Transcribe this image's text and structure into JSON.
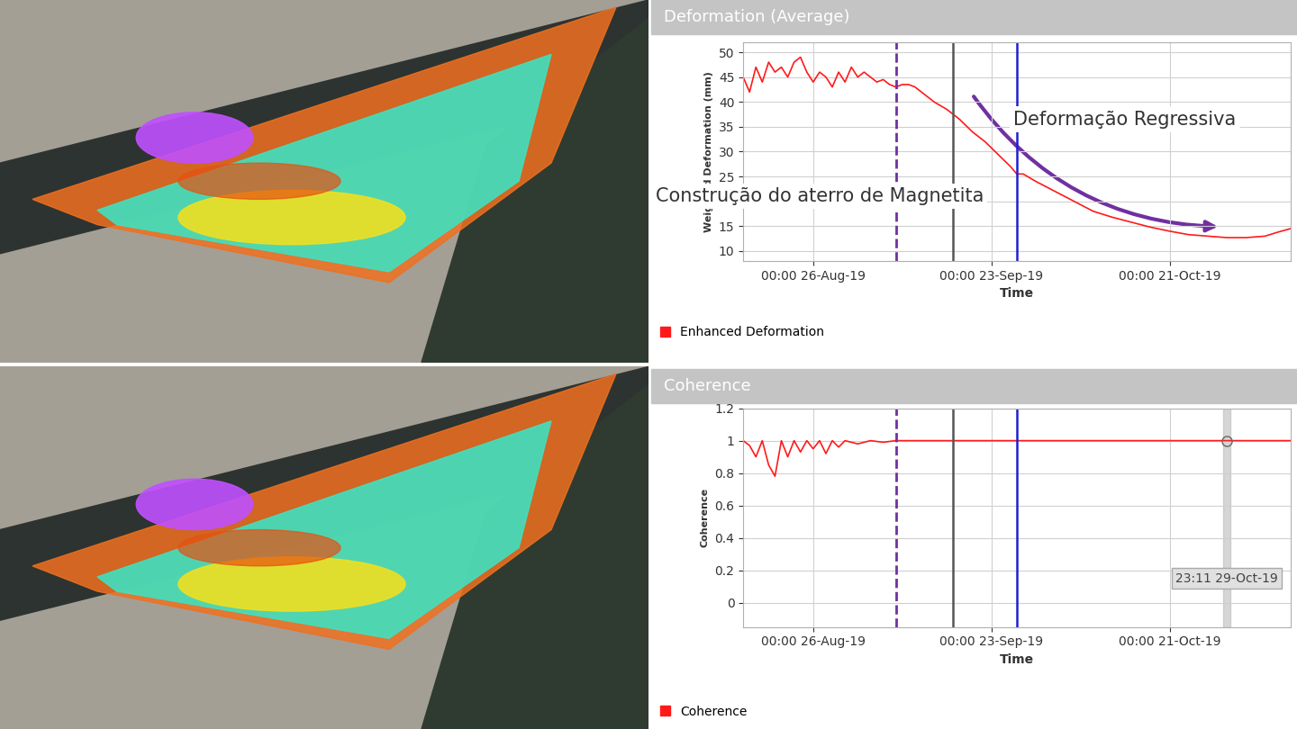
{
  "chart_data": [
    {
      "type": "line",
      "title": "Deformation (Average)",
      "x_label": "Time",
      "y_label": "Weighted Deformation (mm)",
      "series": [
        {
          "name": "Enhanced Deformation",
          "color": "#ff1a1a",
          "x": [
            "2019-08-15",
            "2019-08-16",
            "2019-08-17",
            "2019-08-18",
            "2019-08-19",
            "2019-08-20",
            "2019-08-21",
            "2019-08-22",
            "2019-08-23",
            "2019-08-24",
            "2019-08-25",
            "2019-08-26",
            "2019-08-27",
            "2019-08-28",
            "2019-08-29",
            "2019-08-30",
            "2019-08-31",
            "2019-09-01",
            "2019-09-02",
            "2019-09-03",
            "2019-09-04",
            "2019-09-05",
            "2019-09-06",
            "2019-09-07",
            "2019-09-08",
            "2019-09-09",
            "2019-09-10",
            "2019-09-11",
            "2019-09-12",
            "2019-09-14",
            "2019-09-16",
            "2019-09-18",
            "2019-09-20",
            "2019-09-22",
            "2019-09-24",
            "2019-09-26",
            "2019-09-27",
            "2019-09-28",
            "2019-09-30",
            "2019-10-03",
            "2019-10-06",
            "2019-10-09",
            "2019-10-12",
            "2019-10-15",
            "2019-10-18",
            "2019-10-21",
            "2019-10-24",
            "2019-10-27",
            "2019-10-30",
            "2019-11-02",
            "2019-11-05",
            "2019-11-07",
            "2019-11-09"
          ],
          "values": [
            45,
            42,
            47,
            44,
            48,
            46,
            47,
            45,
            48,
            49,
            46,
            44,
            46,
            45,
            43,
            46,
            44,
            47,
            45,
            46,
            45,
            44,
            44.5,
            43.5,
            43,
            43.5,
            43.5,
            43,
            42,
            40,
            38.5,
            36.5,
            34,
            32,
            29.5,
            27,
            25.5,
            25.5,
            24,
            22,
            20,
            18,
            16.8,
            15.8,
            14.8,
            14,
            13.3,
            13,
            12.7,
            12.7,
            13,
            13.8,
            14.5
          ]
        }
      ],
      "xlim": [
        "2019-08-15",
        "2019-11-09"
      ],
      "xticks": [
        {
          "value": "2019-08-26",
          "label": "00:00 26-Aug-19"
        },
        {
          "value": "2019-09-23",
          "label": "00:00 23-Sep-19"
        },
        {
          "value": "2019-10-21",
          "label": "00:00 21-Oct-19"
        }
      ],
      "ylim": [
        8,
        52
      ],
      "yticks": [
        10,
        15,
        20,
        25,
        30,
        35,
        40,
        45,
        50
      ],
      "grid": true,
      "legend": "lower left",
      "annotations": [
        {
          "text": "Construção do aterro de Magnetita",
          "x": "2019-08-27",
          "y": 21
        },
        {
          "text": "Deformação Regressiva",
          "x": "2019-10-14",
          "y": 36.5,
          "color": "#7030a0",
          "arrow": {
            "x": [
              "2019-09-20",
              "2019-10-29"
            ],
            "y": [
              41.5,
              14.9
            ]
          }
        }
      ]
    },
    {
      "type": "line",
      "title": "Coherence",
      "x_label": "Time",
      "y_label": "Coherence",
      "series": [
        {
          "name": "Coherence",
          "color": "#ff1a1a",
          "x": [
            "2019-08-15",
            "2019-08-16",
            "2019-08-17",
            "2019-08-18",
            "2019-08-19",
            "2019-08-20",
            "2019-08-21",
            "2019-08-22",
            "2019-08-23",
            "2019-08-24",
            "2019-08-25",
            "2019-08-26",
            "2019-08-27",
            "2019-08-28",
            "2019-08-29",
            "2019-08-30",
            "2019-08-31",
            "2019-09-02",
            "2019-09-04",
            "2019-09-06",
            "2019-09-08",
            "2019-09-15",
            "2019-10-01",
            "2019-10-15",
            "2019-11-01",
            "2019-11-09"
          ],
          "values": [
            1,
            0.97,
            0.9,
            1,
            0.85,
            0.78,
            1,
            0.9,
            1,
            0.93,
            1,
            0.95,
            1,
            0.92,
            1,
            0.96,
            1,
            0.98,
            1,
            0.99,
            1,
            1,
            1,
            1,
            1,
            1
          ]
        }
      ],
      "xlim": [
        "2019-08-15",
        "2019-11-09"
      ],
      "xticks": [
        {
          "value": "2019-08-26",
          "label": "00:00 26-Aug-19"
        },
        {
          "value": "2019-09-23",
          "label": "00:00 23-Sep-19"
        },
        {
          "value": "2019-10-21",
          "label": "00:00 21-Oct-19"
        }
      ],
      "ylim": [
        -0.15,
        1.2
      ],
      "yticks": [
        0,
        0.2,
        0.4,
        0.6,
        0.8,
        1,
        1.2
      ],
      "grid": true,
      "legend": "lower left",
      "cursor": {
        "x": "2019-10-29 23:11",
        "y": 1,
        "label": "23:11 29-Oct-19"
      }
    }
  ],
  "vlines": [
    {
      "x": "2019-09-08",
      "color": "#7030a0",
      "line_style": "dashed"
    },
    {
      "x": "2019-09-17",
      "color": "#555555",
      "line_style": "solid"
    },
    {
      "x": "2019-09-27",
      "color": "#1f1fd0",
      "line_style": "solid"
    }
  ]
}
